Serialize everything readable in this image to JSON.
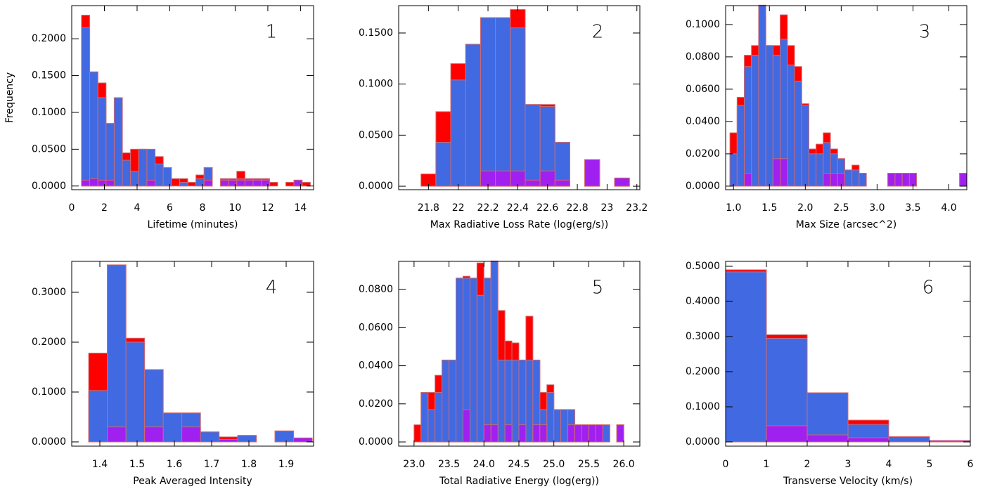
{
  "chart_data": [
    {
      "type": "histogram",
      "annotation": "1",
      "xlabel": "Lifetime (minutes)",
      "ylabel": "Frequency",
      "edge_color": "#d2696e",
      "bins": [
        0.6,
        1.1,
        1.6,
        2.1,
        2.6,
        3.1,
        3.6,
        4.1,
        4.6,
        5.1,
        5.6,
        6.1,
        6.6,
        7.1,
        7.6,
        8.1,
        8.6,
        9.1,
        9.6,
        10.1,
        10.6,
        11.1,
        11.6,
        12.1,
        12.6,
        13.1,
        13.6,
        14.1,
        14.6
      ],
      "series": [
        {
          "color": "#ff0000",
          "values": [
            0.232,
            0.155,
            0.14,
            0.085,
            0.12,
            0.045,
            0.05,
            0.05,
            0.045,
            0.04,
            0.025,
            0.01,
            0.01,
            0.005,
            0.015,
            0.025,
            0,
            0.01,
            0.01,
            0.02,
            0.01,
            0.01,
            0.01,
            0.005,
            0,
            0.005,
            0.005,
            0.005
          ]
        },
        {
          "color": "#4169e1",
          "values": [
            0.215,
            0.155,
            0.12,
            0.085,
            0.12,
            0.035,
            0.02,
            0.05,
            0.05,
            0.03,
            0.025,
            0,
            0.005,
            0,
            0.01,
            0.025,
            0,
            0.01,
            0.01,
            0.01,
            0.01,
            0.01,
            0.01,
            0,
            0,
            0,
            0.008,
            0
          ]
        },
        {
          "color": "#a020f0",
          "values": [
            0.008,
            0.01,
            0.008,
            0.008,
            0,
            0,
            0,
            0,
            0.008,
            0,
            0,
            0,
            0,
            0,
            0,
            0.008,
            0,
            0.008,
            0.008,
            0.008,
            0.008,
            0.008,
            0.008,
            0,
            0,
            0,
            0.008,
            0
          ]
        }
      ],
      "xlim": [
        0,
        14.8
      ],
      "ylim": [
        -0.005,
        0.245
      ],
      "xticks": [
        0,
        2,
        4,
        6,
        8,
        10,
        12,
        14
      ],
      "yticks": [
        {
          "value": 0,
          "label": "0.0000"
        },
        {
          "value": 0.05,
          "label": "0.0500"
        },
        {
          "value": 0.1,
          "label": "0.1000"
        },
        {
          "value": 0.15,
          "label": "0.1500"
        },
        {
          "value": 0.2,
          "label": "0.2000"
        }
      ]
    },
    {
      "type": "histogram",
      "annotation": "2",
      "xlabel": "Max Radiative Loss Rate (log(erg/s))",
      "edge_color": "#d2696e",
      "bins": [
        21.75,
        21.85,
        21.95,
        22.05,
        22.15,
        22.25,
        22.35,
        22.45,
        22.55,
        22.65,
        22.75,
        22.85,
        22.95,
        23.05,
        23.15
      ],
      "series": [
        {
          "color": "#ff0000",
          "values": [
            0.012,
            0.073,
            0.12,
            0.139,
            0.165,
            0.165,
            0.173,
            0.08,
            0.08,
            0.043,
            0,
            0.026,
            0,
            0.008
          ]
        },
        {
          "color": "#4169e1",
          "values": [
            0,
            0.043,
            0.104,
            0.139,
            0.165,
            0.165,
            0.155,
            0.08,
            0.078,
            0.043,
            0,
            0.026,
            0,
            0.008
          ]
        },
        {
          "color": "#a020f0",
          "values": [
            0,
            0,
            0,
            0,
            0.015,
            0.015,
            0.015,
            0.006,
            0.015,
            0.006,
            0,
            0.026,
            0,
            0.008
          ]
        }
      ],
      "xlim": [
        21.6,
        23.22
      ],
      "ylim": [
        -0.0034,
        0.1768
      ],
      "xticks": [
        21.8,
        22.0,
        22.2,
        22.4,
        22.6,
        22.8,
        23.0,
        23.2
      ],
      "yticks": [
        {
          "value": 0,
          "label": "0.0000"
        },
        {
          "value": 0.05,
          "label": "0.0500"
        },
        {
          "value": 0.1,
          "label": "0.1000"
        },
        {
          "value": 0.15,
          "label": "0.1500"
        }
      ]
    },
    {
      "type": "histogram",
      "annotation": "3",
      "xlabel": "Max Size (arcsec^2)",
      "edge_color": "#d2696e",
      "bins": [
        0.95,
        1.05,
        1.15,
        1.25,
        1.35,
        1.45,
        1.55,
        1.65,
        1.75,
        1.85,
        1.95,
        2.05,
        2.15,
        2.25,
        2.35,
        2.45,
        2.55,
        2.65,
        2.75,
        2.85,
        2.95,
        3.05,
        3.15,
        3.25,
        3.35,
        3.45,
        3.55,
        3.65,
        3.75,
        3.85,
        3.95,
        4.05,
        4.15,
        4.25
      ],
      "series": [
        {
          "color": "#ff0000",
          "values": [
            0.033,
            0.055,
            0.081,
            0.087,
            0.106,
            0.087,
            0.087,
            0.106,
            0.087,
            0.074,
            0.051,
            0.023,
            0.026,
            0.033,
            0.023,
            0.017,
            0.01,
            0.013,
            0.008,
            0,
            0,
            0,
            0.008,
            0.008,
            0.008,
            0.008,
            0,
            0,
            0,
            0,
            0,
            0,
            0.008,
            0.003
          ]
        },
        {
          "color": "#4169e1",
          "values": [
            0.02,
            0.05,
            0.074,
            0.081,
            0.112,
            0.087,
            0.081,
            0.091,
            0.075,
            0.065,
            0.05,
            0.02,
            0.02,
            0.027,
            0.02,
            0.017,
            0.01,
            0.01,
            0.008,
            0,
            0,
            0,
            0.008,
            0.008,
            0.008,
            0.008,
            0,
            0,
            0,
            0,
            0,
            0,
            0.008,
            0
          ]
        },
        {
          "color": "#a020f0",
          "values": [
            0,
            0,
            0.008,
            0,
            0,
            0,
            0.017,
            0.017,
            0,
            0,
            0,
            0,
            0,
            0.008,
            0.008,
            0.008,
            0,
            0,
            0,
            0,
            0,
            0,
            0.008,
            0.008,
            0.008,
            0.008,
            0,
            0,
            0,
            0,
            0,
            0,
            0.008,
            0
          ]
        }
      ],
      "xlim": [
        0.89,
        4.25
      ],
      "ylim": [
        -0.0022,
        0.1117
      ],
      "xticks": [
        {
          "value": 1,
          "label": "1.0"
        },
        1.5,
        {
          "value": 2,
          "label": "2.0"
        },
        2.5,
        {
          "value": 3,
          "label": "3.0"
        },
        3.5,
        {
          "value": 4,
          "label": "4.0"
        }
      ],
      "yticks": [
        {
          "value": 0,
          "label": "0.0000"
        },
        {
          "value": 0.02,
          "label": "0.0200"
        },
        {
          "value": 0.04,
          "label": "0.0400"
        },
        {
          "value": 0.06,
          "label": "0.0600"
        },
        {
          "value": 0.08,
          "label": "0.0800"
        },
        {
          "value": 0.1,
          "label": "0.1000"
        }
      ]
    },
    {
      "type": "histogram",
      "annotation": "4",
      "xlabel": "Peak Averaged Intensity",
      "edge_color": "#d2696e",
      "bins": [
        1.37,
        1.42,
        1.47,
        1.52,
        1.57,
        1.62,
        1.67,
        1.72,
        1.77,
        1.82,
        1.87,
        1.92,
        1.97
      ],
      "series": [
        {
          "color": "#ff0000",
          "values": [
            0.178,
            0.355,
            0.208,
            0.145,
            0.058,
            0.058,
            0.02,
            0.01,
            0.013,
            0,
            0.022,
            0.005
          ]
        },
        {
          "color": "#4169e1",
          "values": [
            0.103,
            0.355,
            0.2,
            0.145,
            0.058,
            0.058,
            0.02,
            0.005,
            0.013,
            0,
            0.022,
            0.003
          ]
        },
        {
          "color": "#a020f0",
          "values": [
            0,
            0.03,
            0,
            0.03,
            0,
            0.03,
            0,
            0.005,
            0,
            0,
            0,
            0.008
          ]
        }
      ],
      "xlim": [
        1.3245,
        1.9736
      ],
      "ylim": [
        -0.0085,
        0.362
      ],
      "xticks": [
        1.4,
        1.5,
        1.6,
        1.7,
        1.8,
        1.9
      ],
      "yticks": [
        {
          "value": 0,
          "label": "0.0000"
        },
        {
          "value": 0.1,
          "label": "0.1000"
        },
        {
          "value": 0.2,
          "label": "0.2000"
        },
        {
          "value": 0.3,
          "label": "0.3000"
        }
      ]
    },
    {
      "type": "histogram",
      "annotation": "5",
      "xlabel": "Total Radiative Energy (log(erg))",
      "edge_color": "#d2696e",
      "bins": [
        23.0,
        23.1,
        23.2,
        23.3,
        23.4,
        23.5,
        23.6,
        23.7,
        23.8,
        23.9,
        24.0,
        24.1,
        24.2,
        24.3,
        24.4,
        24.5,
        24.6,
        24.7,
        24.8,
        24.9,
        25.0,
        25.1,
        25.2,
        25.3,
        25.4,
        25.5,
        25.6,
        25.7,
        25.8,
        25.9,
        26.0
      ],
      "series": [
        {
          "color": "#ff0000",
          "values": [
            0.009,
            0.026,
            0.026,
            0.035,
            0.043,
            0.043,
            0.086,
            0.087,
            0.086,
            0.094,
            0.086,
            0.095,
            0.069,
            0.053,
            0.052,
            0.043,
            0.066,
            0.043,
            0.026,
            0.03,
            0.017,
            0.017,
            0.017,
            0.009,
            0.009,
            0.009,
            0.009,
            0.009,
            0,
            0.009
          ]
        },
        {
          "color": "#4169e1",
          "values": [
            0,
            0.026,
            0.017,
            0.026,
            0.043,
            0.043,
            0.086,
            0.086,
            0.086,
            0.077,
            0.086,
            0.095,
            0.043,
            0.043,
            0.043,
            0.043,
            0.043,
            0.043,
            0.017,
            0.026,
            0.017,
            0.017,
            0.017,
            0.009,
            0.009,
            0.009,
            0.009,
            0.009,
            0,
            0.009
          ]
        },
        {
          "color": "#a020f0",
          "values": [
            0,
            0,
            0,
            0,
            0,
            0,
            0,
            0.017,
            0,
            0,
            0.009,
            0.009,
            0,
            0.009,
            0,
            0.009,
            0,
            0.009,
            0.009,
            0,
            0,
            0,
            0.009,
            0.009,
            0.009,
            0.009,
            0.009,
            0,
            0,
            0.009
          ]
        }
      ],
      "xlim": [
        22.78,
        26.23
      ],
      "ylim": [
        -0.0022,
        0.0948
      ],
      "xticks": [
        {
          "value": 23,
          "label": "23.0"
        },
        23.5,
        {
          "value": 24,
          "label": "24.0"
        },
        24.5,
        {
          "value": 25,
          "label": "25.0"
        },
        25.5,
        {
          "value": 26,
          "label": "26.0"
        }
      ],
      "yticks": [
        {
          "value": 0,
          "label": "0.0000"
        },
        {
          "value": 0.02,
          "label": "0.0200"
        },
        {
          "value": 0.04,
          "label": "0.0400"
        },
        {
          "value": 0.06,
          "label": "0.0600"
        },
        {
          "value": 0.08,
          "label": "0.0800"
        }
      ]
    },
    {
      "type": "histogram",
      "annotation": "6",
      "xlabel": "Transverse Velocity (km/s)",
      "edge_color": "#d2696e",
      "bins": [
        0,
        1,
        2,
        3,
        4,
        5,
        6
      ],
      "series": [
        {
          "color": "#ff0000",
          "values": [
            0.49,
            0.305,
            0.14,
            0.062,
            0.015,
            0.004
          ]
        },
        {
          "color": "#4169e1",
          "values": [
            0.484,
            0.295,
            0.14,
            0.05,
            0.015,
            0.004
          ]
        },
        {
          "color": "#a020f0",
          "values": [
            0,
            0.046,
            0.02,
            0.012,
            0,
            0.004
          ]
        }
      ],
      "xlim": [
        0,
        6
      ],
      "ylim": [
        -0.012,
        0.514
      ],
      "xticks": [
        0,
        1,
        2,
        3,
        4,
        5,
        6
      ],
      "yticks": [
        {
          "value": 0,
          "label": "0.0000"
        },
        {
          "value": 0.1,
          "label": "0.1000"
        },
        {
          "value": 0.2,
          "label": "0.2000"
        },
        {
          "value": 0.3,
          "label": "0.3000"
        },
        {
          "value": 0.4,
          "label": "0.4000"
        },
        {
          "value": 0.5,
          "label": "0.5000"
        }
      ]
    }
  ]
}
